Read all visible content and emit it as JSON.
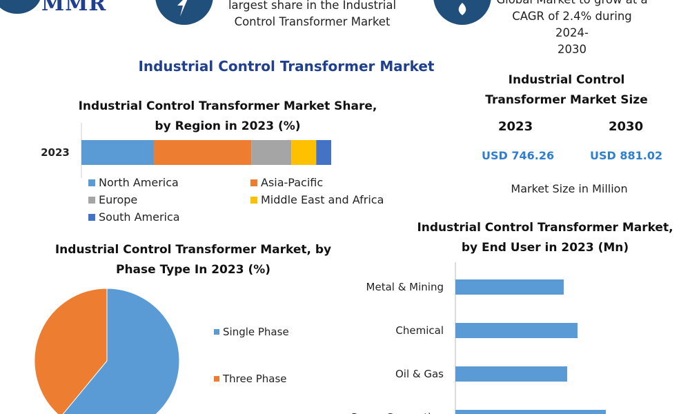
{
  "header": {
    "logo_text": "MMR",
    "banner1_lines": [
      "largest share in the Industrial",
      "Control Transformer Market"
    ],
    "banner2_lines": [
      "Global Market to grow at a",
      "CAGR of 2.4% during 2024-",
      "2030"
    ]
  },
  "main_title": "Industrial Control Transformer Market",
  "market_size": {
    "title": "Industrial Control Transformer Market Size",
    "years": [
      "2023",
      "2030"
    ],
    "values": [
      "USD 746.26",
      "USD 881.02"
    ],
    "unit_note": "Market Size in Million"
  },
  "chart_data": [
    {
      "type": "bar",
      "orientation": "horizontal-stacked",
      "title": "Industrial Control Transformer Market Share, by Region in 2023 (%)",
      "categories": [
        "2023"
      ],
      "series": [
        {
          "name": "North America",
          "values": [
            29
          ],
          "color": "#5b9bd5"
        },
        {
          "name": "Asia-Pacific",
          "values": [
            39
          ],
          "color": "#ed7d31"
        },
        {
          "name": "Europe",
          "values": [
            16
          ],
          "color": "#a5a5a5"
        },
        {
          "name": "Middle East and Africa",
          "values": [
            10
          ],
          "color": "#ffc000"
        },
        {
          "name": "South America",
          "values": [
            6
          ],
          "color": "#4472c4"
        }
      ],
      "legend_position": "bottom"
    },
    {
      "type": "pie",
      "title": "Industrial Control Transformer Market, by Phase Type In 2023 (%)",
      "labels": [
        "Single Phase",
        "Three Phase"
      ],
      "values": [
        61,
        39
      ],
      "colors": [
        "#5b9bd5",
        "#ed7d31"
      ],
      "legend_position": "right"
    },
    {
      "type": "bar",
      "orientation": "horizontal",
      "title": "Industrial Control Transformer Market, by End User in 2023 (Mn)",
      "categories": [
        "Metal & Mining",
        "Chemical",
        "Oil & Gas",
        "Power Generation"
      ],
      "values": [
        157,
        177,
        162,
        218
      ],
      "xlim": [
        0,
        340
      ],
      "color": "#5b9bd5"
    }
  ]
}
